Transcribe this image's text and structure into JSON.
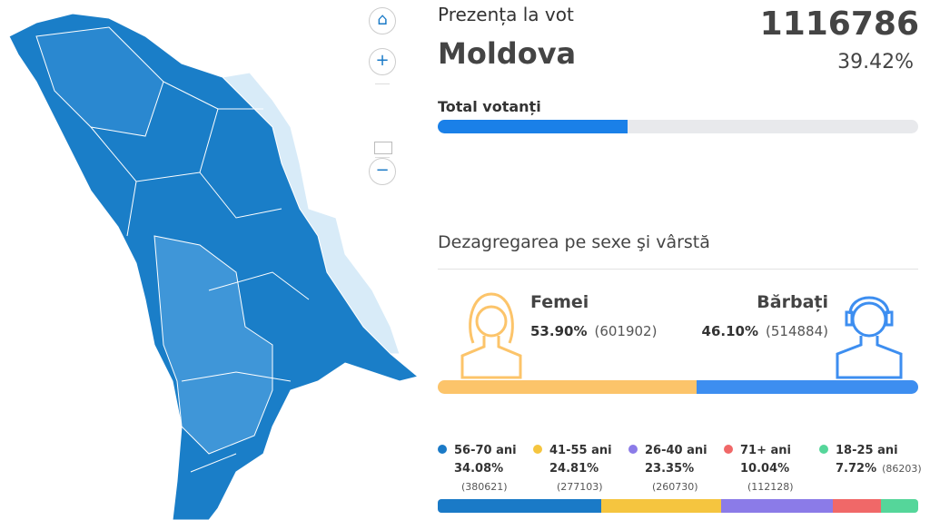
{
  "header": {
    "title": "Prezența la vot",
    "region": "Moldova",
    "total": "1116786",
    "percent": {
      "value": 39.42,
      "label": "39.42%"
    },
    "bar_label": "Total votanți"
  },
  "breakdown": {
    "title": "Dezagregarea pe sexe şi vârstă",
    "gender": [
      {
        "name": "Femei",
        "percent": {
          "value": 53.9,
          "label": "53.90%"
        },
        "count": "(601902)",
        "color": "#fcc46a"
      },
      {
        "name": "Bărbați",
        "percent": {
          "value": 46.1,
          "label": "46.10%"
        },
        "count": "(514884)",
        "color": "#3d8ef0"
      }
    ],
    "age": [
      {
        "name": "56-70 ani",
        "percent": {
          "value": 34.08,
          "label": "34.08%"
        },
        "count": "(380621)",
        "color": "#1a7ac7"
      },
      {
        "name": "41-55 ani",
        "percent": {
          "value": 24.81,
          "label": "24.81%"
        },
        "count": "(277103)",
        "color": "#f5c53f"
      },
      {
        "name": "26-40 ani",
        "percent": {
          "value": 23.35,
          "label": "23.35%"
        },
        "count": "(260730)",
        "color": "#8b7be8"
      },
      {
        "name": "71+ ani",
        "percent": {
          "value": 10.04,
          "label": "10.04%"
        },
        "count": "(112128)",
        "color": "#f06868"
      },
      {
        "name": "18-25 ani",
        "percent": {
          "value": 7.72,
          "label": "7.72%"
        },
        "count": "(86203)",
        "color": "#55d69a"
      }
    ]
  }
}
